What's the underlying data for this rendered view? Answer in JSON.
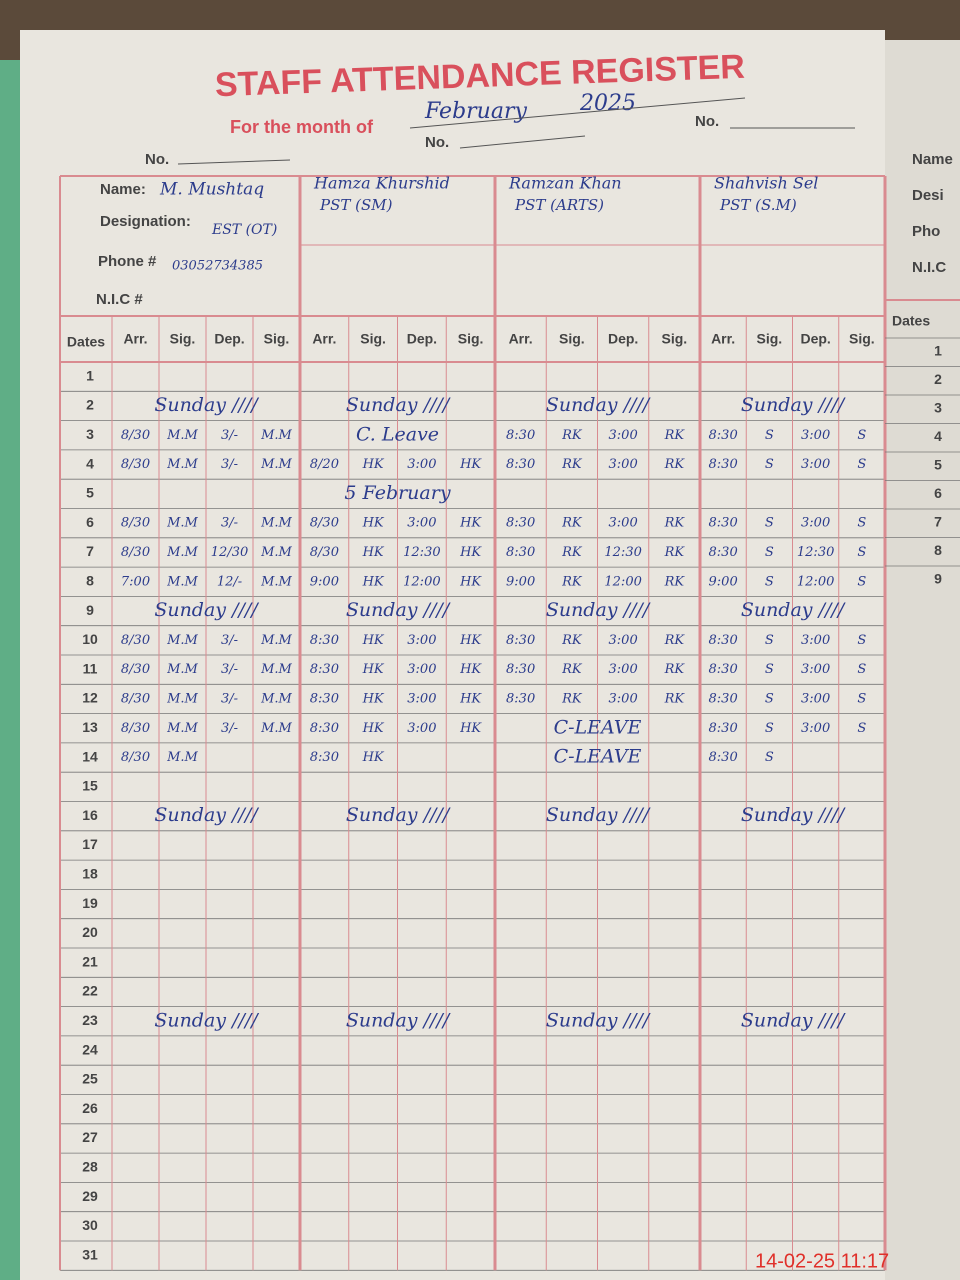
{
  "header": {
    "title": "STAFF ATTENDANCE REGISTER",
    "month_label": "For the month of",
    "month": "February",
    "year": "2025",
    "no_labels": [
      "No.",
      "No.",
      "No."
    ]
  },
  "labels": {
    "name": "Name:",
    "designation": "Designation:",
    "phone": "Phone #",
    "nic": "N.I.C #",
    "dates": "Dates"
  },
  "columns": [
    "Arr.",
    "Sig.",
    "Dep.",
    "Sig."
  ],
  "staff": [
    {
      "name": "M. Mushtaq",
      "designation": "EST (OT)",
      "phone": "03052734385"
    },
    {
      "name": "Hamza Khurshid",
      "designation": "PST (SM)"
    },
    {
      "name": "Ramzan Khan",
      "designation": "PST (ARTS)"
    },
    {
      "name": "Shahvish Sel",
      "designation": "PST (S.M)"
    }
  ],
  "rows": [
    {
      "date": "1",
      "entries": [
        null,
        null,
        null,
        null
      ]
    },
    {
      "date": "2",
      "entries": [
        "Sunday ////",
        "Sunday ////",
        "Sunday ////",
        "Sunday ////"
      ]
    },
    {
      "date": "3",
      "entries": [
        [
          "8/30",
          "M.M",
          "3/-",
          "M.M"
        ],
        "C. Leave",
        [
          "8:30",
          "RK",
          "3:00",
          "RK"
        ],
        [
          "8:30",
          "S",
          "3:00",
          "S"
        ]
      ]
    },
    {
      "date": "4",
      "entries": [
        [
          "8/30",
          "M.M",
          "3/-",
          "M.M"
        ],
        [
          "8/20",
          "HK",
          "3:00",
          "HK"
        ],
        [
          "8:30",
          "RK",
          "3:00",
          "RK"
        ],
        [
          "8:30",
          "S",
          "3:00",
          "S"
        ]
      ]
    },
    {
      "date": "5",
      "entries": [
        null,
        "5 February",
        null,
        null
      ]
    },
    {
      "date": "6",
      "entries": [
        [
          "8/30",
          "M.M",
          "3/-",
          "M.M"
        ],
        [
          "8/30",
          "HK",
          "3:00",
          "HK"
        ],
        [
          "8:30",
          "RK",
          "3:00",
          "RK"
        ],
        [
          "8:30",
          "S",
          "3:00",
          "S"
        ]
      ]
    },
    {
      "date": "7",
      "entries": [
        [
          "8/30",
          "M.M",
          "12/30",
          "M.M"
        ],
        [
          "8/30",
          "HK",
          "12:30",
          "HK"
        ],
        [
          "8:30",
          "RK",
          "12:30",
          "RK"
        ],
        [
          "8:30",
          "S",
          "12:30",
          "S"
        ]
      ]
    },
    {
      "date": "8",
      "entries": [
        [
          "7:00",
          "M.M",
          "12/-",
          "M.M"
        ],
        [
          "9:00",
          "HK",
          "12:00",
          "HK"
        ],
        [
          "9:00",
          "RK",
          "12:00",
          "RK"
        ],
        [
          "9:00",
          "S",
          "12:00",
          "S"
        ]
      ]
    },
    {
      "date": "9",
      "entries": [
        "Sunday ////",
        "Sunday ////",
        "Sunday ////",
        "Sunday ////"
      ]
    },
    {
      "date": "10",
      "entries": [
        [
          "8/30",
          "M.M",
          "3/-",
          "M.M"
        ],
        [
          "8:30",
          "HK",
          "3:00",
          "HK"
        ],
        [
          "8:30",
          "RK",
          "3:00",
          "RK"
        ],
        [
          "8:30",
          "S",
          "3:00",
          "S"
        ]
      ]
    },
    {
      "date": "11",
      "entries": [
        [
          "8/30",
          "M.M",
          "3/-",
          "M.M"
        ],
        [
          "8:30",
          "HK",
          "3:00",
          "HK"
        ],
        [
          "8:30",
          "RK",
          "3:00",
          "RK"
        ],
        [
          "8:30",
          "S",
          "3:00",
          "S"
        ]
      ]
    },
    {
      "date": "12",
      "entries": [
        [
          "8/30",
          "M.M",
          "3/-",
          "M.M"
        ],
        [
          "8:30",
          "HK",
          "3:00",
          "HK"
        ],
        [
          "8:30",
          "RK",
          "3:00",
          "RK"
        ],
        [
          "8:30",
          "S",
          "3:00",
          "S"
        ]
      ]
    },
    {
      "date": "13",
      "entries": [
        [
          "8/30",
          "M.M",
          "3/-",
          "M.M"
        ],
        [
          "8:30",
          "HK",
          "3:00",
          "HK"
        ],
        "C-LEAVE",
        [
          "8:30",
          "S",
          "3:00",
          "S"
        ]
      ]
    },
    {
      "date": "14",
      "entries": [
        [
          "8/30",
          "M.M",
          null,
          null
        ],
        [
          "8:30",
          "HK",
          null,
          null
        ],
        "C-LEAVE",
        [
          "8:30",
          "S",
          null,
          null
        ]
      ]
    },
    {
      "date": "15",
      "entries": [
        null,
        null,
        null,
        null
      ]
    },
    {
      "date": "16",
      "entries": [
        "Sunday ////",
        "Sunday ////",
        "Sunday ////",
        "Sunday ////"
      ]
    },
    {
      "date": "17",
      "entries": [
        null,
        null,
        null,
        null
      ]
    },
    {
      "date": "18",
      "entries": [
        null,
        null,
        null,
        null
      ]
    },
    {
      "date": "19",
      "entries": [
        null,
        null,
        null,
        null
      ]
    },
    {
      "date": "20",
      "entries": [
        null,
        null,
        null,
        null
      ]
    },
    {
      "date": "21",
      "entries": [
        null,
        null,
        null,
        null
      ]
    },
    {
      "date": "22",
      "entries": [
        null,
        null,
        null,
        null
      ]
    },
    {
      "date": "23",
      "entries": [
        "Sunday ////",
        "Sunday ////",
        "Sunday ////",
        "Sunday ////"
      ]
    },
    {
      "date": "24",
      "entries": [
        null,
        null,
        null,
        null
      ]
    },
    {
      "date": "25",
      "entries": [
        null,
        null,
        null,
        null
      ]
    },
    {
      "date": "26",
      "entries": [
        null,
        null,
        null,
        null
      ]
    },
    {
      "date": "27",
      "entries": [
        null,
        null,
        null,
        null
      ]
    },
    {
      "date": "28",
      "entries": [
        null,
        null,
        null,
        null
      ]
    },
    {
      "date": "29",
      "entries": [
        null,
        null,
        null,
        null
      ]
    },
    {
      "date": "30",
      "entries": [
        null,
        null,
        null,
        null
      ]
    },
    {
      "date": "31",
      "entries": [
        null,
        null,
        null,
        null
      ]
    }
  ],
  "right_page": {
    "labels": [
      "Name",
      "Desi",
      "Pho",
      "N.I.C"
    ],
    "dates_label": "Dates",
    "dates": [
      "1",
      "2",
      "3",
      "4",
      "5",
      "6",
      "7",
      "8",
      "9"
    ]
  },
  "timestamp": "14-02-25  11:17"
}
